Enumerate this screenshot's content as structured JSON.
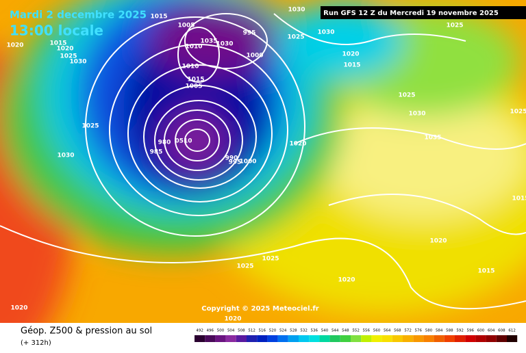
{
  "header": {
    "date": "Mardi 2 decembre 2025",
    "time": "13:00 locale",
    "run": "Run GFS 12 Z du Mercredi 19 novembre 2025"
  },
  "map": {
    "pressure_labels": [
      "1015",
      "1005",
      "1035",
      "1030",
      "995",
      "1000",
      "1030",
      "1025",
      "1030",
      "1025",
      "1020",
      "1015",
      "1025",
      "1030",
      "1035",
      "1020",
      "1025",
      "1030",
      "1015",
      "1020",
      "1025",
      "1030",
      "980",
      "985",
      "0510",
      "990",
      "995",
      "1000",
      "1025",
      "1025",
      "1020",
      "1020",
      "1015",
      "1020",
      "1020",
      "1025",
      "1010",
      "1015",
      "1005",
      "1010",
      "1020",
      "1015"
    ]
  },
  "copyright": "Copyright © 2025 Meteociel.fr",
  "footer": {
    "title": "Géop. Z500 & pression au sol",
    "lead": "(+ 312h)"
  },
  "legend": {
    "ticks": [
      492,
      496,
      500,
      504,
      508,
      512,
      516,
      520,
      524,
      528,
      532,
      536,
      540,
      544,
      548,
      552,
      556,
      560,
      564,
      568,
      572,
      576,
      580,
      584,
      588,
      592,
      596,
      600,
      604,
      608,
      612
    ],
    "colors": [
      "#2a0030",
      "#4a0a5a",
      "#6a1480",
      "#8a2aa0",
      "#5a1aa0",
      "#2020b0",
      "#0020c0",
      "#0040e0",
      "#0070f0",
      "#00a0f0",
      "#00c8f0",
      "#00e0e0",
      "#00d8a0",
      "#20c860",
      "#40d040",
      "#80e040",
      "#c0f000",
      "#f0f000",
      "#f8e000",
      "#f8c800",
      "#f8b000",
      "#f89800",
      "#f88000",
      "#f06000",
      "#f04000",
      "#e02000",
      "#d00000",
      "#b00000",
      "#900000",
      "#600000",
      "#200000"
    ]
  }
}
